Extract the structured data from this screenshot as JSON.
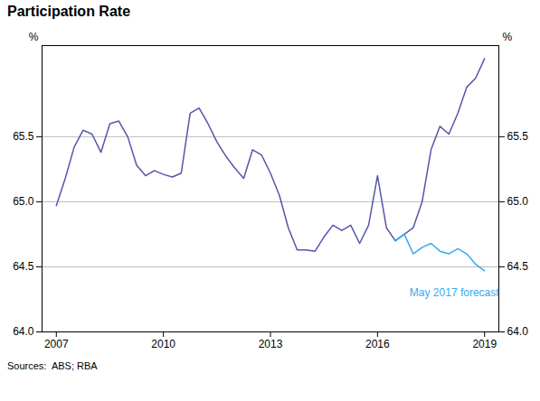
{
  "chart_data": {
    "type": "line",
    "title": "Participation Rate",
    "ylabel": "%",
    "y2label": "%",
    "caption": "Sources:  ABS; RBA",
    "xlim": [
      2006.6,
      2019.4
    ],
    "xticks": [
      2007,
      2010,
      2013,
      2016,
      2019
    ],
    "ylim": [
      64.0,
      66.2
    ],
    "yticks": [
      {
        "value": 64.0,
        "label": "64.0"
      },
      64.5,
      {
        "value": 65.0,
        "label": "65.0"
      },
      65.5
    ],
    "y2lim": [
      64.0,
      66.2
    ],
    "y2ticks": [
      {
        "value": 64.0,
        "label": "64.0"
      },
      64.5,
      {
        "value": 65.0,
        "label": "65.0"
      },
      65.5
    ],
    "grid": "y",
    "series": [
      {
        "color": "#5555AA",
        "x": [
          2007.0,
          2007.25,
          2007.5,
          2007.75,
          2008.0,
          2008.25,
          2008.5,
          2008.75,
          2009.0,
          2009.25,
          2009.5,
          2009.75,
          2010.0,
          2010.25,
          2010.5,
          2010.75,
          2011.0,
          2011.25,
          2011.5,
          2011.75,
          2012.0,
          2012.25,
          2012.5,
          2012.75,
          2013.0,
          2013.25,
          2013.5,
          2013.75,
          2014.0,
          2014.25,
          2014.5,
          2014.75,
          2015.0,
          2015.25,
          2015.5,
          2015.75,
          2016.0,
          2016.25,
          2016.5,
          2016.75,
          2017.0,
          2017.25,
          2017.5,
          2017.75,
          2018.0,
          2018.25,
          2018.5,
          2018.75,
          2019.0
        ],
        "values": [
          64.97,
          65.18,
          65.42,
          65.55,
          65.52,
          65.38,
          65.6,
          65.62,
          65.5,
          65.28,
          65.2,
          65.24,
          65.21,
          65.19,
          65.22,
          65.68,
          65.72,
          65.6,
          65.46,
          65.35,
          65.26,
          65.18,
          65.4,
          65.36,
          65.22,
          65.05,
          64.8,
          64.63,
          64.63,
          64.62,
          64.73,
          64.82,
          64.78,
          64.82,
          64.68,
          64.82,
          65.2,
          64.8,
          64.7,
          64.75,
          64.8,
          65.0,
          65.4,
          65.58,
          65.52,
          65.68,
          65.88,
          65.95,
          66.1
        ]
      },
      {
        "color": "#33AAEE",
        "x": [
          2016.5,
          2016.75,
          2017.0,
          2017.25,
          2017.5,
          2017.75,
          2018.0,
          2018.25,
          2018.5,
          2018.75,
          2019.0
        ],
        "values": [
          64.7,
          64.75,
          64.6,
          64.65,
          64.68,
          64.62,
          64.6,
          64.64,
          64.6,
          64.52,
          64.47
        ]
      }
    ],
    "annotations": [
      {
        "text": "May 2017 forecast",
        "x": 2016.9,
        "y": 64.33,
        "color": "#33AAEE"
      }
    ]
  }
}
